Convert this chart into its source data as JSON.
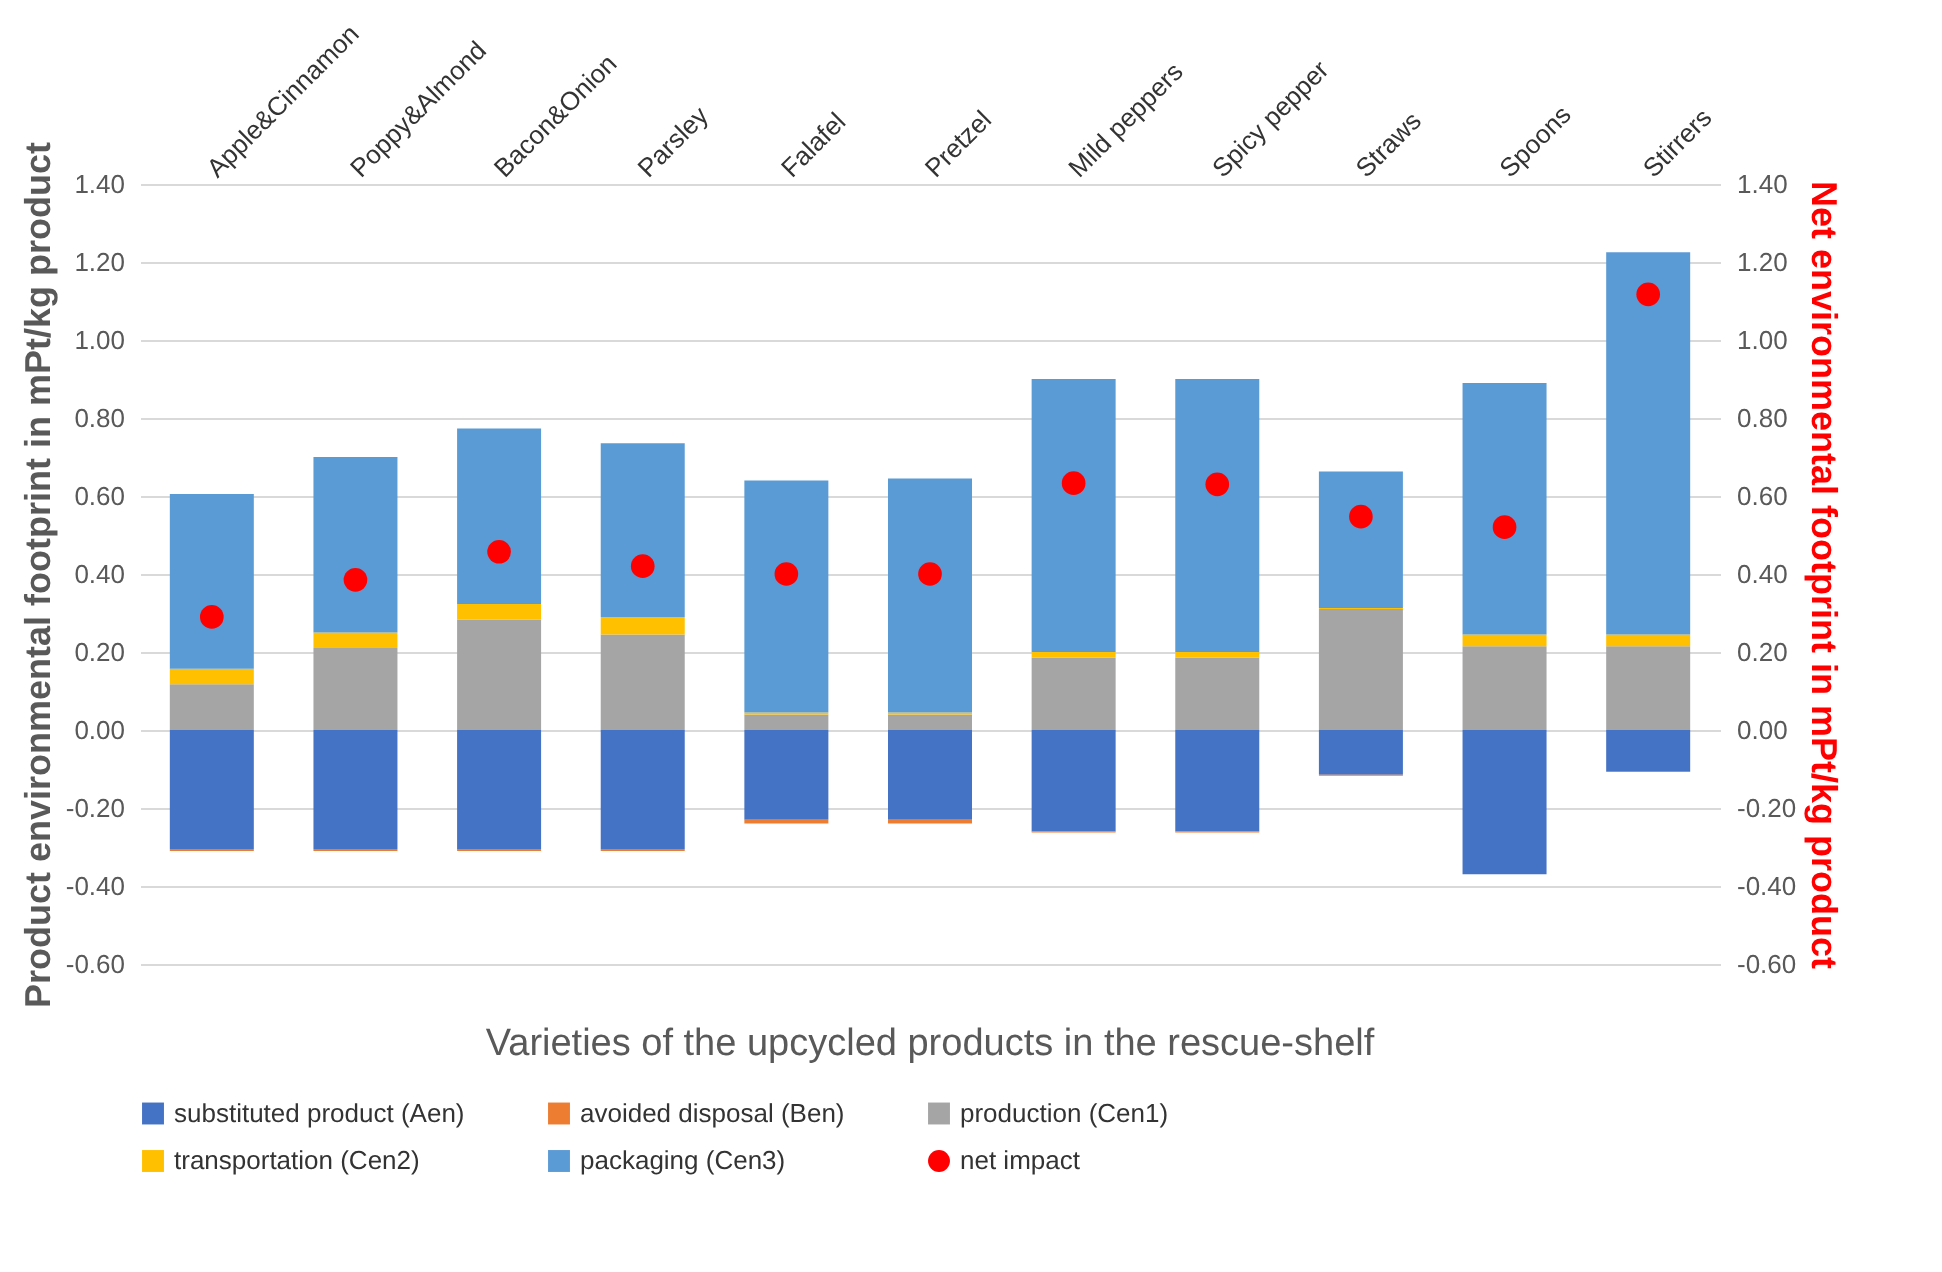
{
  "chart_data": {
    "type": "bar",
    "stacked": true,
    "xlabel": "Varieties of the upcycled products in the rescue-shelf",
    "ylabel": "Product environmental footprint in mPt/kg product",
    "y2label": "Net environmental footprint in mPt/kg product",
    "categories": [
      "Apple&Cinnamon",
      "Poppy&Almond",
      "Bacon&Onion",
      "Parsley",
      "Falafel",
      "Pretzel",
      "Mild peppers",
      "Spicy pepper",
      "Straws",
      "Spoons",
      "Stirrers"
    ],
    "series": [
      {
        "name": "substituted product (Aen)",
        "color": "#4472c4",
        "values": [
          -0.305,
          -0.305,
          -0.305,
          -0.305,
          -0.23,
          -0.23,
          -0.26,
          -0.26,
          -0.115,
          -0.37,
          -0.105
        ]
      },
      {
        "name": "avoided disposal (Ben)",
        "color": "#ed7d31",
        "values": [
          -0.005,
          -0.005,
          -0.005,
          -0.005,
          -0.01,
          -0.01,
          -0.003,
          -0.003,
          -0.002,
          0,
          -0.003
        ]
      },
      {
        "name": "production (Cen1)",
        "color": "#a5a5a5",
        "values": [
          0.117,
          0.21,
          0.283,
          0.245,
          0.04,
          0.04,
          0.185,
          0.185,
          0.31,
          0.215,
          0.215
        ]
      },
      {
        "name": "transportation (Cen2)",
        "color": "#ffc000",
        "values": [
          0.04,
          0.04,
          0.04,
          0.045,
          0.005,
          0.005,
          0.015,
          0.015,
          0.003,
          0.03,
          0.03
        ]
      },
      {
        "name": "packaging (Cen3)",
        "color": "#5b9bd5",
        "values": [
          0.448,
          0.45,
          0.45,
          0.445,
          0.595,
          0.6,
          0.7,
          0.7,
          0.35,
          0.645,
          0.98
        ]
      },
      {
        "name": "net impact",
        "type": "scatter",
        "axis": "y2",
        "color": "#ff0000",
        "values": [
          0.29,
          0.385,
          0.457,
          0.42,
          0.4,
          0.4,
          0.633,
          0.63,
          0.547,
          0.52,
          1.117
        ]
      }
    ],
    "ylim": [
      -0.6,
      1.4
    ],
    "yticks": [
      {
        "value": -0.6,
        "label": "-0.60"
      },
      {
        "value": -0.4,
        "label": "-0.40"
      },
      {
        "value": -0.2,
        "label": "-0.20"
      },
      {
        "value": 0,
        "label": "0.00"
      },
      {
        "value": 0.2,
        "label": "0.20"
      },
      {
        "value": 0.4,
        "label": "0.40"
      },
      {
        "value": 0.6,
        "label": "0.60"
      },
      {
        "value": 0.8,
        "label": "0.80"
      },
      {
        "value": 1,
        "label": "1.00"
      },
      {
        "value": 1.2,
        "label": "1.20"
      },
      {
        "value": 1.4,
        "label": "1.40"
      }
    ],
    "y2lim": [
      -0.6,
      1.4
    ],
    "y2ticks": [
      {
        "value": -0.6,
        "label": "-0.60"
      },
      {
        "value": -0.4,
        "label": "-0.40"
      },
      {
        "value": -0.2,
        "label": "-0.20"
      },
      {
        "value": 0,
        "label": "0.00"
      },
      {
        "value": 0.2,
        "label": "0.20"
      },
      {
        "value": 0.4,
        "label": "0.40"
      },
      {
        "value": 0.6,
        "label": "0.60"
      },
      {
        "value": 0.8,
        "label": "0.80"
      },
      {
        "value": 1,
        "label": "1.00"
      },
      {
        "value": 1.2,
        "label": "1.20"
      },
      {
        "value": 1.4,
        "label": "1.40"
      }
    ],
    "grid": "y",
    "legend": "bottom",
    "marker": "circle"
  }
}
